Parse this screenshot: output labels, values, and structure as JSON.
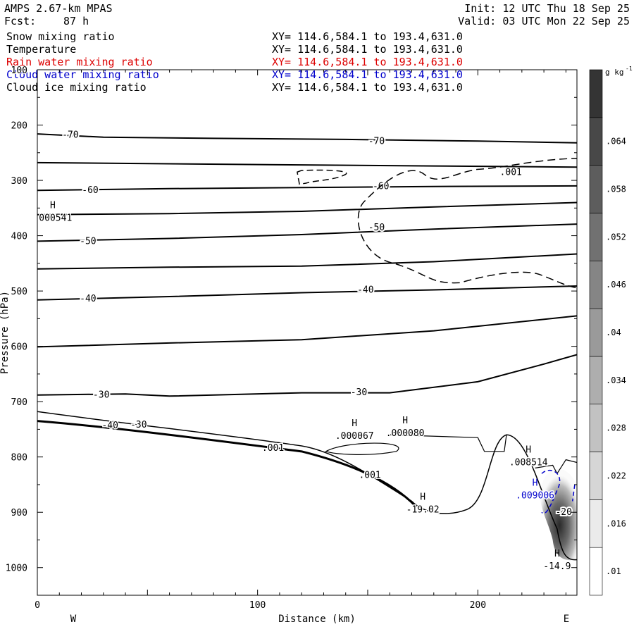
{
  "header": {
    "model": "AMPS 2.67-km MPAS",
    "forecast_label": "Fcst:",
    "forecast_hours": "87 h",
    "init": "Init: 12 UTC Thu 18 Sep 25",
    "valid": "Valid: 03 UTC Mon 22 Sep 25"
  },
  "fields": [
    {
      "name": "Snow mixing ratio",
      "xy": "XY= 114.6,584.1 to 193.4,631.0",
      "color": "#000000"
    },
    {
      "name": "Temperature",
      "xy": "XY= 114.6,584.1 to 193.4,631.0",
      "color": "#000000"
    },
    {
      "name": "Rain water mixing ratio",
      "xy": "XY= 114.6,584.1 to 193.4,631.0",
      "color": "#dd0000"
    },
    {
      "name": "Cloud water mixing ratio",
      "xy": "XY= 114.6,584.1 to 193.4,631.0",
      "color": "#0000cc"
    },
    {
      "name": "Cloud ice mixing ratio",
      "xy": "XY= 114.6,584.1 to 193.4,631.0",
      "color": "#000000"
    }
  ],
  "chart_data": {
    "type": "cross-section contour",
    "xlabel": "Distance (km)",
    "ylabel": "Pressure (hPa)",
    "xlim": [
      0,
      245
    ],
    "ylim": [
      1050,
      100
    ],
    "x_ticks": [
      0,
      100,
      200
    ],
    "y_ticks": [
      100,
      200,
      300,
      400,
      500,
      600,
      700,
      800,
      900,
      1000
    ],
    "direction_labels": {
      "west": "W",
      "east": "E"
    },
    "temperature_contours": [
      {
        "label": "-70",
        "points": [
          [
            0,
            216
          ],
          [
            30,
            222
          ],
          [
            80,
            224
          ],
          [
            140,
            226
          ],
          [
            200,
            229
          ],
          [
            245,
            232
          ]
        ]
      },
      {
        "label": "",
        "points": [
          [
            0,
            268
          ],
          [
            60,
            270
          ],
          [
            120,
            272
          ],
          [
            180,
            274
          ],
          [
            245,
            276
          ]
        ]
      },
      {
        "label": "-60",
        "points": [
          [
            0,
            318
          ],
          [
            60,
            315
          ],
          [
            120,
            313
          ],
          [
            180,
            311
          ],
          [
            245,
            310
          ]
        ]
      },
      {
        "label": "",
        "points": [
          [
            0,
            362
          ],
          [
            60,
            360
          ],
          [
            120,
            356
          ],
          [
            180,
            348
          ],
          [
            245,
            340
          ]
        ]
      },
      {
        "label": "-50",
        "points": [
          [
            0,
            410
          ],
          [
            60,
            405
          ],
          [
            120,
            398
          ],
          [
            180,
            388
          ],
          [
            245,
            379
          ]
        ]
      },
      {
        "label": "",
        "points": [
          [
            0,
            460
          ],
          [
            60,
            457
          ],
          [
            120,
            455
          ],
          [
            180,
            447
          ],
          [
            245,
            433
          ]
        ]
      },
      {
        "label": "-40",
        "points": [
          [
            0,
            516
          ],
          [
            60,
            510
          ],
          [
            120,
            503
          ],
          [
            180,
            498
          ],
          [
            245,
            491
          ]
        ]
      },
      {
        "label": "",
        "points": [
          [
            0,
            601
          ],
          [
            60,
            594
          ],
          [
            120,
            588
          ],
          [
            180,
            572
          ],
          [
            245,
            545
          ]
        ]
      },
      {
        "label": "-30",
        "points": [
          [
            0,
            688
          ],
          [
            40,
            686
          ],
          [
            60,
            690
          ],
          [
            120,
            684
          ],
          [
            160,
            684
          ],
          [
            200,
            664
          ],
          [
            230,
            632
          ],
          [
            245,
            615
          ]
        ]
      }
    ],
    "temperature_label_positions": [
      {
        "label": "-70",
        "x": 15,
        "y": 218
      },
      {
        "label": "-70",
        "x": 154,
        "y": 229
      },
      {
        "label": "-60",
        "x": 24,
        "y": 318
      },
      {
        "label": "-60",
        "x": 156,
        "y": 311
      },
      {
        "label": "-50",
        "x": 23,
        "y": 410
      },
      {
        "label": "-50",
        "x": 154,
        "y": 385
      },
      {
        "label": "-40",
        "x": 23,
        "y": 514
      },
      {
        "label": "-40",
        "x": 149,
        "y": 498
      },
      {
        "label": "-30",
        "x": 29,
        "y": 688
      },
      {
        "label": "-30",
        "x": 146,
        "y": 683
      },
      {
        "label": "-20",
        "x": 239,
        "y": 900
      }
    ],
    "snow_contour_001": {
      "label": ".001",
      "label_x": 215,
      "label_y": 285
    },
    "extrema": [
      {
        "marker": "H",
        "value": ".000541",
        "x": 7,
        "y": 368
      },
      {
        "marker": "H",
        "value": ".000067",
        "x": 144,
        "y": 762
      },
      {
        "marker": "H",
        "value": ".000080",
        "x": 167,
        "y": 757
      },
      {
        "marker": "H",
        "value": "-19.02",
        "x": 175,
        "y": 895
      },
      {
        "marker": "H",
        "value": ".008514",
        "x": 223,
        "y": 810
      },
      {
        "marker": "H",
        "value": ".009006",
        "x": 226,
        "y": 870
      },
      {
        "marker": "H",
        "value": "-14.9",
        "x": 236,
        "y": 998
      }
    ],
    "other_labels": [
      {
        "text": ".001",
        "x": 107,
        "y": 784
      },
      {
        "text": ".001",
        "x": 151,
        "y": 833
      },
      {
        "text": "-40",
        "x": 33,
        "y": 743
      },
      {
        "text": "-30",
        "x": 46,
        "y": 742
      }
    ],
    "colorbar": {
      "unit_base": "g kg",
      "unit_exp": "-1",
      "levels": [
        0.01,
        0.016,
        0.022,
        0.028,
        0.034,
        0.04,
        0.046,
        0.052,
        0.058,
        0.064
      ],
      "tick_labels": [
        ".01",
        ".016",
        ".022",
        ".028",
        ".034",
        ".04",
        ".046",
        ".052",
        ".058",
        ".064"
      ]
    }
  }
}
